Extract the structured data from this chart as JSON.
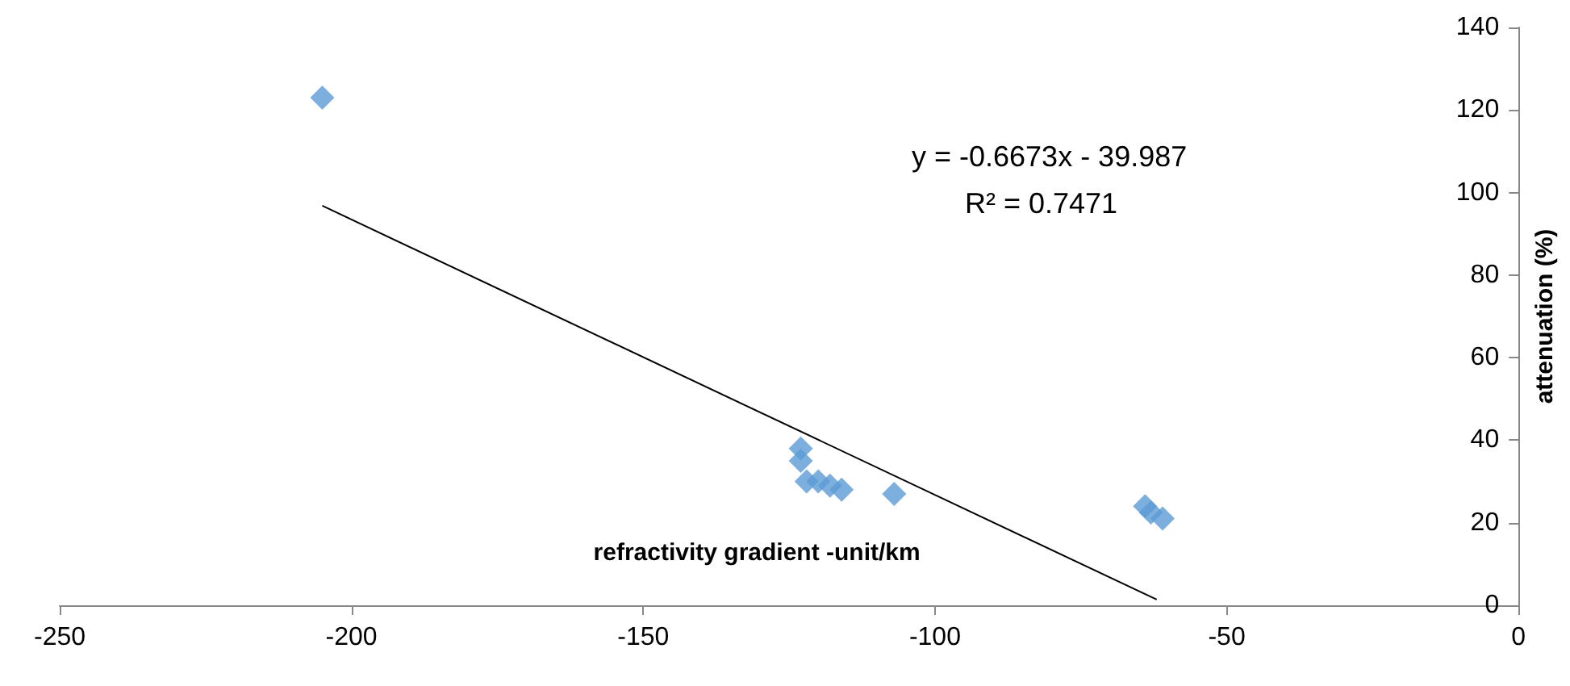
{
  "chart_data": {
    "type": "scatter",
    "xlabel": "refractivity gradient -unit/km",
    "ylabel": "attenuation (%)",
    "annotations": [
      "y = -0.6673x - 39.987",
      "R² = 0.7471"
    ],
    "xlim": [
      -250,
      0
    ],
    "xticks": [
      -250,
      -200,
      -150,
      -100,
      -50,
      0
    ],
    "ylim": [
      0,
      140
    ],
    "yticks": [
      0,
      20,
      40,
      60,
      80,
      100,
      120,
      140
    ],
    "grid": false,
    "marker": "diamond",
    "series": [
      {
        "color": "#5b9bd5",
        "x": [
          -205,
          -123,
          -123,
          -122,
          -120,
          -118,
          -116,
          -107,
          -64,
          -63,
          -61
        ],
        "values": [
          123,
          38,
          35,
          30,
          30,
          29,
          28,
          27,
          24,
          22.5,
          21
        ]
      },
      {
        "type": "line",
        "color": "#000000",
        "line_style": "solid",
        "marker": "none",
        "x": [
          -205,
          -62
        ],
        "values": [
          96.8,
          1.4
        ]
      }
    ]
  }
}
